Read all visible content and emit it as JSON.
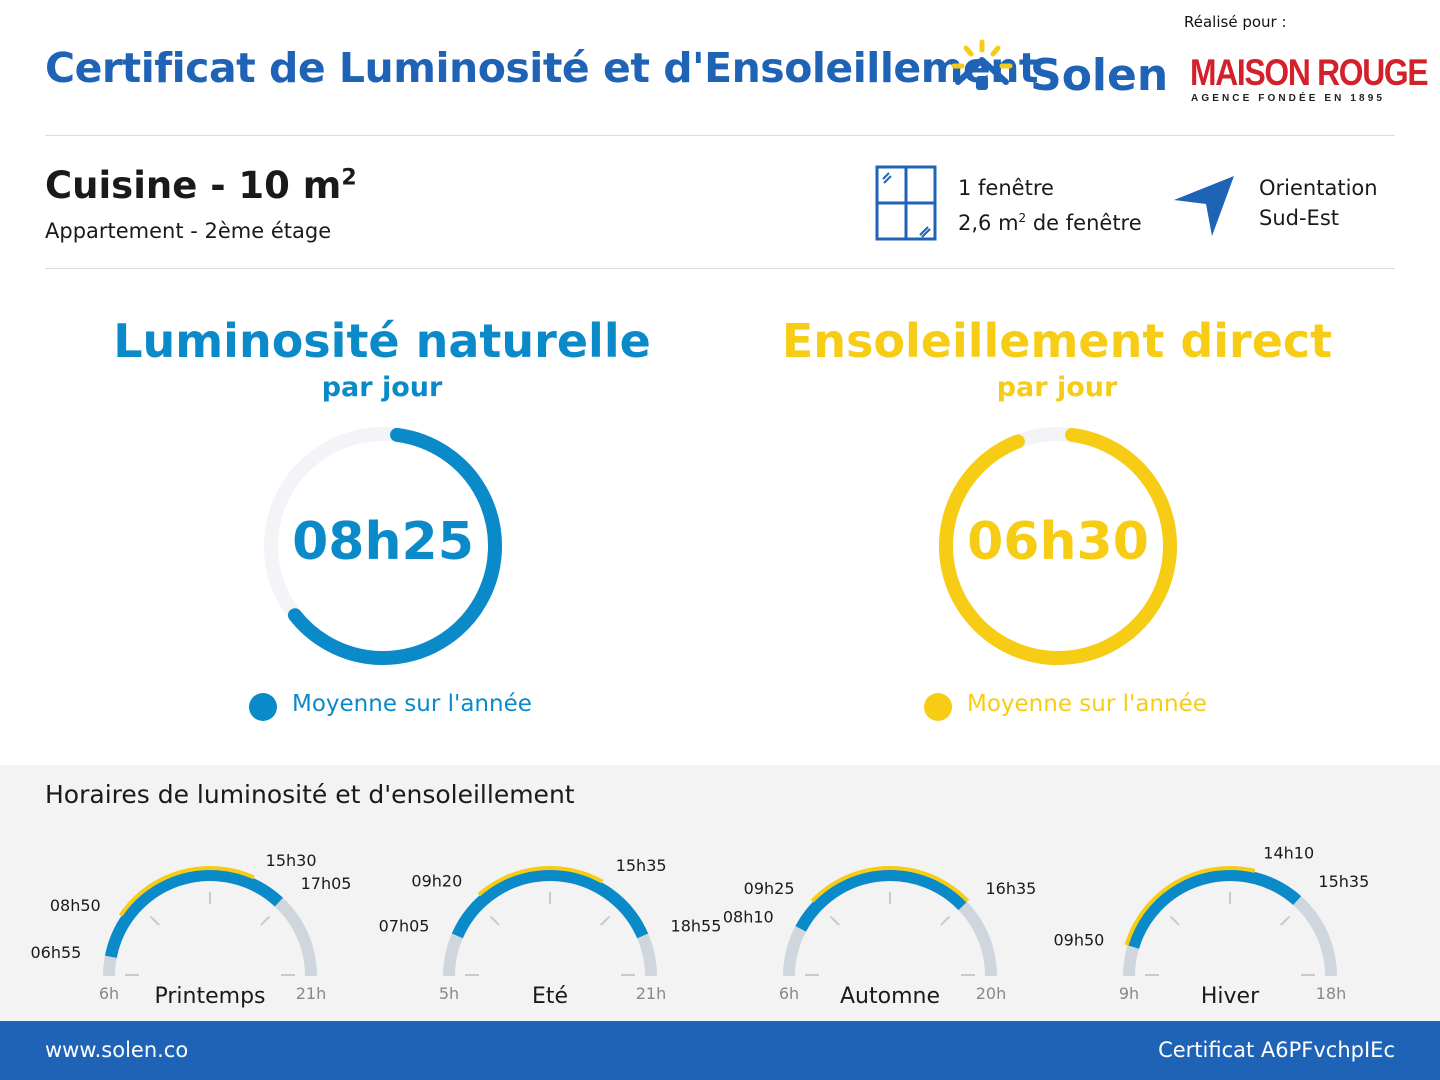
{
  "header": {
    "title": "Certificat de Luminosité et d'Ensoleillement",
    "brand": "Solen",
    "made_for": "Réalisé pour :",
    "partner_name": "MAISON ROUGE",
    "partner_tagline": "AGENCE FONDÉE EN 1895"
  },
  "room": {
    "name": "Cuisine - 10 m",
    "superscript": "2",
    "details": "Appartement - 2ème étage"
  },
  "windows": {
    "icon": "window-icon",
    "count": "1 fenêtre",
    "area": "2,6 m",
    "area_sup": "2",
    "area_suffix": " de fenêtre"
  },
  "orientation": {
    "icon": "compass-arrow-icon",
    "label": "Orientation",
    "value": "Sud-Est"
  },
  "luminosity": {
    "title": "Luminosité naturelle",
    "subtitle": "par jour",
    "value": "08h25",
    "fraction": 0.65,
    "legend": "Moyenne sur l'année",
    "color": "#0a8ac9"
  },
  "sunshine": {
    "title": "Ensoleillement direct",
    "subtitle": "par jour",
    "value": "06h30",
    "fraction": 0.96,
    "legend": "Moyenne sur l'année",
    "color": "#f7cc14"
  },
  "schedule": {
    "title": "Horaires de luminosité et d'ensoleillement",
    "seasons": [
      {
        "name": "Printemps",
        "range_start": "6h",
        "range_end": "21h",
        "start_hour": 6,
        "end_hour": 21,
        "blue": [
          "06h55",
          "17h05"
        ],
        "yellow": [
          "08h50",
          "15h30"
        ]
      },
      {
        "name": "Eté",
        "range_start": "5h",
        "range_end": "21h",
        "start_hour": 5,
        "end_hour": 21,
        "blue": [
          "07h05",
          "18h55"
        ],
        "yellow": [
          "09h20",
          "15h35"
        ]
      },
      {
        "name": "Automne",
        "range_start": "6h",
        "range_end": "20h",
        "start_hour": 6,
        "end_hour": 20,
        "blue": [
          "08h10",
          "16h35"
        ],
        "yellow": [
          "09h25",
          "16h35"
        ]
      },
      {
        "name": "Hiver",
        "range_start": "9h",
        "range_end": "18h",
        "start_hour": 9,
        "end_hour": 18,
        "blue": [
          "09h50",
          "15h35"
        ],
        "yellow": [
          "09h50",
          "14h10"
        ]
      }
    ]
  },
  "footer": {
    "website": "www.solen.co",
    "certificate": "Certificat A6PFvchpIEc"
  }
}
